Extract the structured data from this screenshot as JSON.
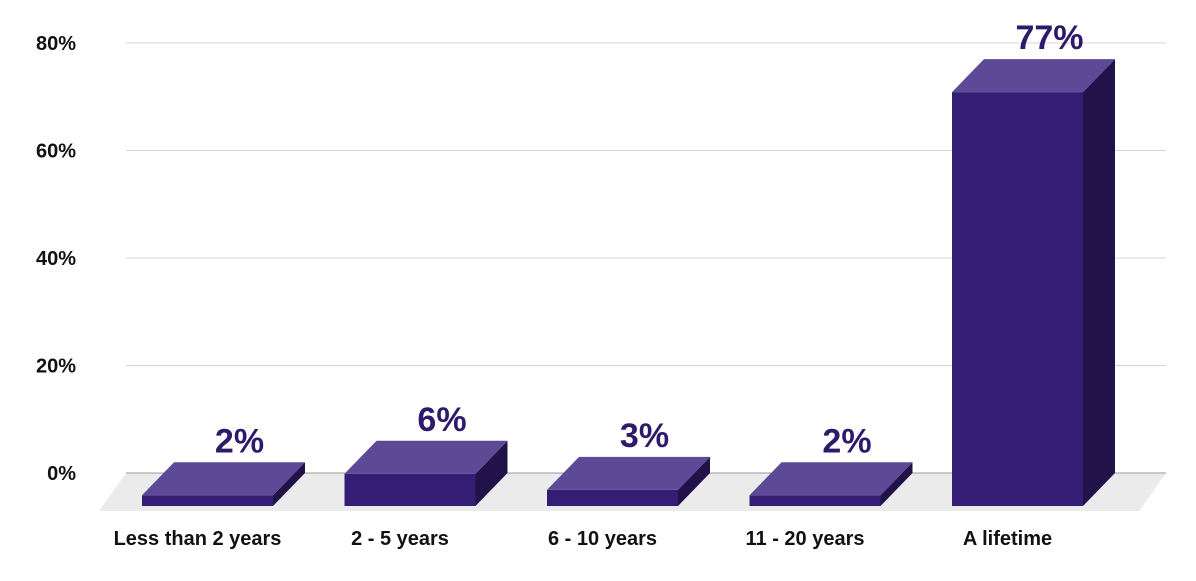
{
  "chart_data": {
    "type": "bar",
    "categories": [
      "Less than 2 years",
      "2 - 5 years",
      "6 - 10 years",
      "11 - 20 years",
      "A lifetime"
    ],
    "values": [
      2,
      6,
      3,
      2,
      77
    ],
    "data_labels": [
      "2%",
      "6%",
      "3%",
      "2%",
      "77%"
    ],
    "ylim": [
      0,
      80
    ],
    "yticks": [
      0,
      20,
      40,
      60,
      80
    ],
    "ytick_labels": [
      "0%",
      "20%",
      "40%",
      "60%",
      "80%"
    ],
    "grid": true,
    "style": "3d",
    "colors": {
      "bar_front": "#351c75",
      "bar_top": "#5c4a96",
      "bar_side": "#21134a",
      "label": "#2e1a6b",
      "floor": "#ebebeb",
      "grid": "#d4d4d4"
    }
  }
}
